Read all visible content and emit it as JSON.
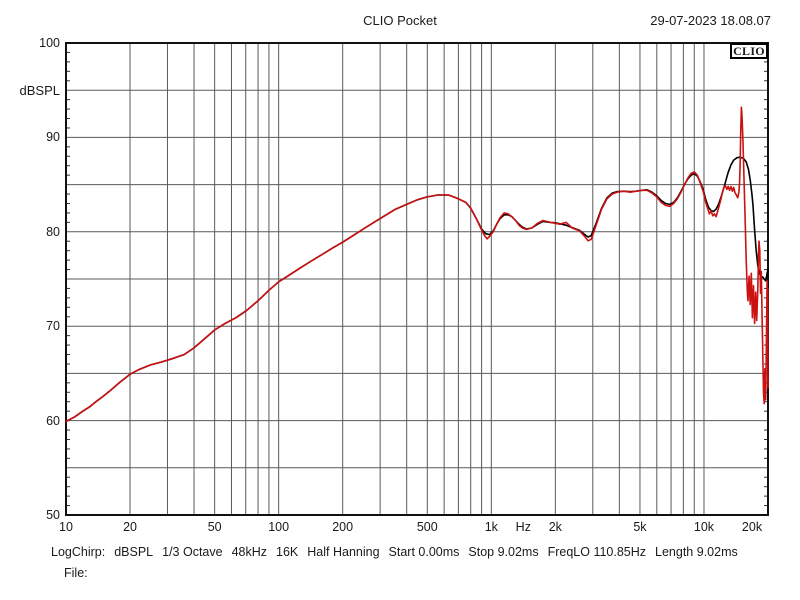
{
  "header": {
    "title": "CLIO Pocket",
    "datetime": "29-07-2023 18.08.07"
  },
  "logo": {
    "text": "CLIO"
  },
  "status_bar": {
    "items": [
      "LogChirp:",
      "dBSPL",
      "1/3 Octave",
      "48kHz",
      "16K",
      "Half Hanning",
      "Start 0.00ms",
      "Stop 9.02ms",
      "FreqLO 110.85Hz",
      "Length 9.02ms"
    ]
  },
  "file_line": {
    "label": "File:"
  },
  "chart_data": {
    "type": "line",
    "title": "CLIO Pocket",
    "xlabel": "Hz",
    "ylabel": "dBSPL",
    "x_scale": "log",
    "xlim": [
      10,
      20000
    ],
    "ylim": [
      50,
      100
    ],
    "y_grid_step": 5,
    "y_minor_tick_step": 1,
    "grid": true,
    "grid_color": "#5a5a5a",
    "frame_color": "#111111",
    "tick_color": "#333333",
    "y_ticks": [
      {
        "v": 100,
        "label": "100"
      },
      {
        "v": 90,
        "label": "90"
      },
      {
        "v": 80,
        "label": "80"
      },
      {
        "v": 70,
        "label": "70"
      },
      {
        "v": 60,
        "label": "60"
      },
      {
        "v": 50,
        "label": "50"
      }
    ],
    "x_ticks": [
      {
        "f": 10,
        "label": "10"
      },
      {
        "f": 20,
        "label": "20"
      },
      {
        "f": 50,
        "label": "50"
      },
      {
        "f": 100,
        "label": "100"
      },
      {
        "f": 200,
        "label": "200"
      },
      {
        "f": 500,
        "label": "500"
      },
      {
        "f": 1000,
        "label": "1k"
      },
      {
        "f": 2000,
        "label": "2k"
      },
      {
        "f": 5000,
        "label": "5k"
      },
      {
        "f": 10000,
        "label": "10k"
      },
      {
        "f": 20000,
        "label": "20k"
      }
    ],
    "series": [
      {
        "name": "reference-response-black",
        "color": "#000000",
        "points": [
          [
            10,
            59.9
          ],
          [
            11,
            60.4
          ],
          [
            12,
            61.0
          ],
          [
            13,
            61.5
          ],
          [
            14,
            62.1
          ],
          [
            15,
            62.6
          ],
          [
            16,
            63.1
          ],
          [
            18,
            64.1
          ],
          [
            20,
            64.9
          ],
          [
            22,
            65.4
          ],
          [
            25,
            65.9
          ],
          [
            28,
            66.2
          ],
          [
            32,
            66.6
          ],
          [
            36,
            67.0
          ],
          [
            40,
            67.7
          ],
          [
            45,
            68.7
          ],
          [
            50,
            69.6
          ],
          [
            56,
            70.3
          ],
          [
            63,
            70.9
          ],
          [
            71,
            71.7
          ],
          [
            80,
            72.7
          ],
          [
            90,
            73.8
          ],
          [
            100,
            74.7
          ],
          [
            112,
            75.4
          ],
          [
            125,
            76.1
          ],
          [
            140,
            76.8
          ],
          [
            160,
            77.6
          ],
          [
            180,
            78.3
          ],
          [
            200,
            78.9
          ],
          [
            224,
            79.6
          ],
          [
            250,
            80.3
          ],
          [
            280,
            81.0
          ],
          [
            315,
            81.7
          ],
          [
            355,
            82.4
          ],
          [
            400,
            82.9
          ],
          [
            450,
            83.4
          ],
          [
            500,
            83.7
          ],
          [
            560,
            83.9
          ],
          [
            630,
            83.9
          ],
          [
            700,
            83.5
          ],
          [
            760,
            83.1
          ],
          [
            800,
            82.5
          ],
          [
            850,
            81.4
          ],
          [
            900,
            80.3
          ],
          [
            940,
            79.8
          ],
          [
            980,
            79.7
          ],
          [
            1020,
            80.1
          ],
          [
            1060,
            80.8
          ],
          [
            1100,
            81.4
          ],
          [
            1150,
            81.8
          ],
          [
            1200,
            81.8
          ],
          [
            1250,
            81.6
          ],
          [
            1300,
            81.2
          ],
          [
            1350,
            80.8
          ],
          [
            1400,
            80.5
          ],
          [
            1460,
            80.3
          ],
          [
            1550,
            80.4
          ],
          [
            1650,
            80.8
          ],
          [
            1750,
            81.1
          ],
          [
            1900,
            81.0
          ],
          [
            2000,
            80.95
          ],
          [
            2100,
            80.85
          ],
          [
            2250,
            80.7
          ],
          [
            2400,
            80.45
          ],
          [
            2600,
            80.15
          ],
          [
            2750,
            79.7
          ],
          [
            2850,
            79.45
          ],
          [
            2950,
            79.6
          ],
          [
            3100,
            80.8
          ],
          [
            3300,
            82.5
          ],
          [
            3500,
            83.6
          ],
          [
            3700,
            84.1
          ],
          [
            3900,
            84.25
          ],
          [
            4200,
            84.3
          ],
          [
            4500,
            84.25
          ],
          [
            4800,
            84.3
          ],
          [
            5100,
            84.4
          ],
          [
            5400,
            84.45
          ],
          [
            5700,
            84.2
          ],
          [
            6000,
            83.8
          ],
          [
            6300,
            83.3
          ],
          [
            6600,
            83.0
          ],
          [
            6900,
            82.9
          ],
          [
            7200,
            83.1
          ],
          [
            7500,
            83.6
          ],
          [
            7800,
            84.3
          ],
          [
            8100,
            85.0
          ],
          [
            8400,
            85.6
          ],
          [
            8700,
            86.0
          ],
          [
            9000,
            86.15
          ],
          [
            9300,
            85.9
          ],
          [
            9600,
            85.3
          ],
          [
            9900,
            84.5
          ],
          [
            10200,
            83.4
          ],
          [
            10500,
            82.6
          ],
          [
            10800,
            82.25
          ],
          [
            11100,
            82.15
          ],
          [
            11400,
            82.4
          ],
          [
            11700,
            82.9
          ],
          [
            12000,
            83.6
          ],
          [
            12300,
            84.4
          ],
          [
            12600,
            85.2
          ],
          [
            13000,
            86.3
          ],
          [
            13400,
            87.1
          ],
          [
            13800,
            87.6
          ],
          [
            14300,
            87.85
          ],
          [
            14800,
            87.9
          ],
          [
            15300,
            87.8
          ],
          [
            15800,
            87.4
          ],
          [
            16200,
            86.6
          ],
          [
            16500,
            85.5
          ],
          [
            16800,
            84.0
          ],
          [
            17000,
            82.8
          ],
          [
            17300,
            80.2
          ],
          [
            17600,
            78.0
          ],
          [
            17900,
            76.4
          ],
          [
            18200,
            75.6
          ],
          [
            18500,
            75.3
          ],
          [
            18900,
            75.2
          ],
          [
            19200,
            75.0
          ],
          [
            19500,
            74.8
          ],
          [
            19800,
            75.6
          ],
          [
            20000,
            76.0
          ]
        ]
      },
      {
        "name": "measured-response-red",
        "color": "#cc1111",
        "points": [
          [
            10,
            59.9
          ],
          [
            11,
            60.4
          ],
          [
            12,
            61.0
          ],
          [
            13,
            61.5
          ],
          [
            14,
            62.1
          ],
          [
            15,
            62.6
          ],
          [
            16,
            63.1
          ],
          [
            18,
            64.1
          ],
          [
            20,
            64.9
          ],
          [
            22,
            65.4
          ],
          [
            25,
            65.9
          ],
          [
            28,
            66.2
          ],
          [
            32,
            66.6
          ],
          [
            36,
            67.0
          ],
          [
            40,
            67.7
          ],
          [
            45,
            68.7
          ],
          [
            50,
            69.6
          ],
          [
            56,
            70.3
          ],
          [
            63,
            70.9
          ],
          [
            71,
            71.7
          ],
          [
            80,
            72.7
          ],
          [
            90,
            73.8
          ],
          [
            100,
            74.7
          ],
          [
            112,
            75.4
          ],
          [
            125,
            76.1
          ],
          [
            140,
            76.8
          ],
          [
            160,
            77.6
          ],
          [
            180,
            78.3
          ],
          [
            200,
            78.9
          ],
          [
            224,
            79.6
          ],
          [
            250,
            80.3
          ],
          [
            280,
            81.0
          ],
          [
            315,
            81.7
          ],
          [
            355,
            82.4
          ],
          [
            400,
            82.9
          ],
          [
            450,
            83.4
          ],
          [
            500,
            83.7
          ],
          [
            560,
            83.9
          ],
          [
            630,
            83.9
          ],
          [
            700,
            83.5
          ],
          [
            760,
            83.1
          ],
          [
            800,
            82.5
          ],
          [
            850,
            81.4
          ],
          [
            900,
            80.2
          ],
          [
            930,
            79.6
          ],
          [
            955,
            79.25
          ],
          [
            980,
            79.5
          ],
          [
            1020,
            80.0
          ],
          [
            1060,
            80.8
          ],
          [
            1100,
            81.5
          ],
          [
            1150,
            82.0
          ],
          [
            1200,
            81.9
          ],
          [
            1250,
            81.6
          ],
          [
            1300,
            81.2
          ],
          [
            1350,
            80.7
          ],
          [
            1400,
            80.4
          ],
          [
            1460,
            80.25
          ],
          [
            1550,
            80.4
          ],
          [
            1650,
            80.9
          ],
          [
            1750,
            81.2
          ],
          [
            1900,
            81.0
          ],
          [
            2000,
            80.9
          ],
          [
            2100,
            80.8
          ],
          [
            2250,
            81.0
          ],
          [
            2400,
            80.4
          ],
          [
            2600,
            80.1
          ],
          [
            2750,
            79.5
          ],
          [
            2850,
            79.05
          ],
          [
            2950,
            79.2
          ],
          [
            3100,
            80.6
          ],
          [
            3300,
            82.4
          ],
          [
            3500,
            83.5
          ],
          [
            3700,
            84.0
          ],
          [
            3900,
            84.2
          ],
          [
            4200,
            84.3
          ],
          [
            4500,
            84.2
          ],
          [
            4800,
            84.3
          ],
          [
            5100,
            84.4
          ],
          [
            5400,
            84.4
          ],
          [
            5700,
            84.1
          ],
          [
            6000,
            83.7
          ],
          [
            6300,
            83.1
          ],
          [
            6600,
            82.8
          ],
          [
            6900,
            82.7
          ],
          [
            7200,
            83.0
          ],
          [
            7500,
            83.5
          ],
          [
            7800,
            84.2
          ],
          [
            8100,
            85.0
          ],
          [
            8400,
            85.7
          ],
          [
            8700,
            86.2
          ],
          [
            9000,
            86.35
          ],
          [
            9300,
            86.0
          ],
          [
            9600,
            85.2
          ],
          [
            9900,
            84.3
          ],
          [
            10200,
            83.1
          ],
          [
            10400,
            82.5
          ],
          [
            10600,
            81.9
          ],
          [
            10800,
            82.2
          ],
          [
            11000,
            81.7
          ],
          [
            11200,
            81.9
          ],
          [
            11400,
            81.6
          ],
          [
            11600,
            82.2
          ],
          [
            11800,
            82.8
          ],
          [
            12000,
            83.4
          ],
          [
            12200,
            84.1
          ],
          [
            12400,
            84.7
          ],
          [
            12600,
            84.9
          ],
          [
            12800,
            84.5
          ],
          [
            13000,
            84.8
          ],
          [
            13200,
            84.4
          ],
          [
            13400,
            84.8
          ],
          [
            13600,
            84.3
          ],
          [
            13800,
            84.7
          ],
          [
            14000,
            84.1
          ],
          [
            14200,
            83.9
          ],
          [
            14400,
            83.6
          ],
          [
            14600,
            84.2
          ],
          [
            14700,
            85.3
          ],
          [
            14800,
            87.5
          ],
          [
            14900,
            91.0
          ],
          [
            15000,
            93.2
          ],
          [
            15100,
            92.3
          ],
          [
            15250,
            89.5
          ],
          [
            15400,
            86.0
          ],
          [
            15600,
            81.5
          ],
          [
            15800,
            77.0
          ],
          [
            16000,
            73.5
          ],
          [
            16100,
            72.7
          ],
          [
            16300,
            75.3
          ],
          [
            16500,
            72.3
          ],
          [
            16700,
            75.6
          ],
          [
            16900,
            70.9
          ],
          [
            17100,
            74.3
          ],
          [
            17300,
            70.3
          ],
          [
            17500,
            73.6
          ],
          [
            17700,
            70.6
          ],
          [
            17900,
            73.9
          ],
          [
            18050,
            77.5
          ],
          [
            18150,
            79.0
          ],
          [
            18300,
            78.0
          ],
          [
            18450,
            73.5
          ],
          [
            18600,
            75.8
          ],
          [
            18750,
            71.5
          ],
          [
            18900,
            67.0
          ],
          [
            19050,
            63.0
          ],
          [
            19200,
            61.8
          ],
          [
            19350,
            65.5
          ],
          [
            19500,
            62.2
          ],
          [
            19650,
            68.5
          ],
          [
            19800,
            74.8
          ],
          [
            19900,
            70.0
          ],
          [
            19960,
            74.0
          ],
          [
            20000,
            63.5
          ]
        ]
      }
    ]
  }
}
